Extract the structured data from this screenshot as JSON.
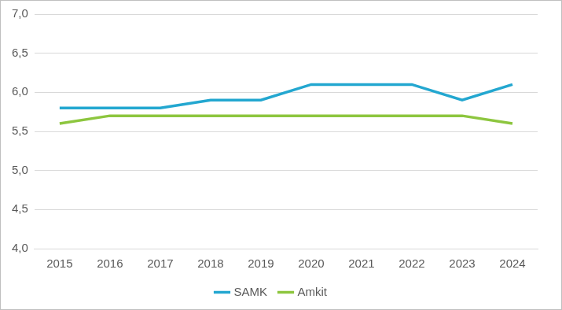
{
  "chart_data": {
    "type": "line",
    "categories": [
      "2015",
      "2016",
      "2017",
      "2018",
      "2019",
      "2020",
      "2021",
      "2022",
      "2023",
      "2024"
    ],
    "series": [
      {
        "name": "SAMK",
        "color": "#23a7d0",
        "values": [
          5.8,
          5.8,
          5.8,
          5.9,
          5.9,
          6.1,
          6.1,
          6.1,
          5.9,
          6.1
        ]
      },
      {
        "name": "Amkit",
        "color": "#8dc63f",
        "values": [
          5.6,
          5.7,
          5.7,
          5.7,
          5.7,
          5.7,
          5.7,
          5.7,
          5.7,
          5.6
        ]
      }
    ],
    "ylim": [
      4.0,
      7.0
    ],
    "yticks": [
      {
        "value": 4.0,
        "label": "4,0"
      },
      {
        "value": 4.5,
        "label": "4,5"
      },
      {
        "value": 5.0,
        "label": "5,0"
      },
      {
        "value": 5.5,
        "label": "5,5"
      },
      {
        "value": 6.0,
        "label": "6,0"
      },
      {
        "value": 6.5,
        "label": "6,5"
      },
      {
        "value": 7.0,
        "label": "7,0"
      }
    ],
    "grid": true,
    "legend": "bottom"
  }
}
